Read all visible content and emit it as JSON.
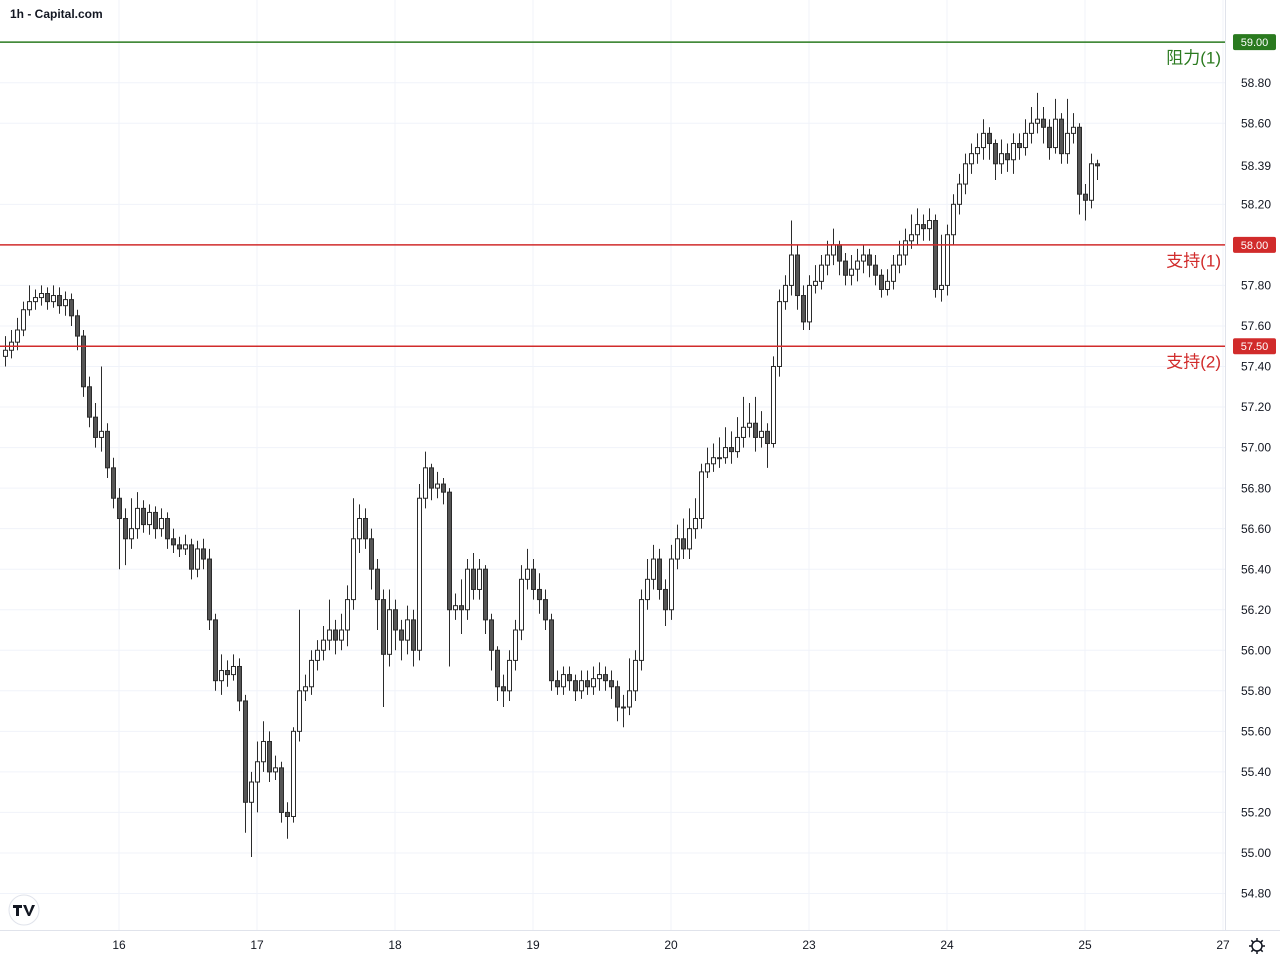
{
  "chart_data": {
    "type": "candlestick",
    "title": "1h - Capital.com",
    "categories": [
      null,
      null,
      null,
      null,
      null,
      null,
      null,
      null,
      null,
      null,
      null,
      null,
      null,
      null,
      null,
      null,
      null,
      null,
      null,
      "16",
      null,
      null,
      null,
      null,
      null,
      null,
      null,
      null,
      null,
      null,
      null,
      null,
      null,
      null,
      null,
      null,
      null,
      null,
      null,
      null,
      null,
      null,
      "17",
      null,
      null,
      null,
      null,
      null,
      null,
      null,
      null,
      null,
      null,
      null,
      null,
      null,
      null,
      null,
      null,
      null,
      null,
      null,
      null,
      null,
      null,
      "18",
      null,
      null,
      null,
      null,
      null,
      null,
      null,
      null,
      null,
      null,
      null,
      null,
      null,
      null,
      null,
      null,
      null,
      null,
      null,
      null,
      null,
      null,
      "19",
      null,
      null,
      null,
      null,
      null,
      null,
      null,
      null,
      null,
      null,
      null,
      null,
      null,
      null,
      null,
      null,
      null,
      null,
      null,
      null,
      null,
      null,
      "20",
      null,
      null,
      null,
      null,
      null,
      null,
      null,
      null,
      null,
      null,
      null,
      null,
      null,
      null,
      null,
      null,
      null,
      null,
      null,
      null,
      null,
      null,
      "23",
      null,
      null,
      null,
      null,
      null,
      null,
      null,
      null,
      null,
      null,
      null,
      null,
      null,
      null,
      null,
      null,
      null,
      null,
      null,
      null,
      null,
      null,
      "24",
      null,
      null,
      null,
      null,
      null,
      null,
      null,
      null,
      null,
      null,
      null,
      null,
      null,
      null,
      null,
      null,
      null,
      null,
      null,
      null,
      null,
      null,
      "25",
      null,
      null,
      null,
      null,
      null,
      null,
      null,
      null,
      null,
      null,
      null,
      null,
      null,
      null,
      null,
      null,
      null,
      null,
      null,
      null,
      null,
      null,
      "27"
    ],
    "open": [
      57.45,
      57.48,
      57.52,
      57.58,
      57.68,
      57.72,
      57.74,
      57.76,
      57.72,
      57.75,
      57.7,
      57.73,
      57.65,
      57.55,
      57.3,
      57.15,
      57.05,
      57.08,
      56.9,
      56.75,
      56.65,
      56.55,
      56.6,
      56.7,
      56.62,
      56.68,
      56.6,
      56.65,
      56.55,
      56.52,
      56.5,
      56.52,
      56.4,
      56.5,
      56.45,
      56.15,
      55.85,
      55.9,
      55.88,
      55.92,
      55.75,
      55.25,
      55.35,
      55.45,
      55.55,
      55.4,
      55.42,
      55.2,
      55.18,
      55.6,
      55.8,
      55.82,
      55.95,
      56.0,
      56.05,
      56.1,
      56.05,
      56.1,
      56.25,
      56.55,
      56.65,
      56.55,
      56.4,
      56.25,
      55.98,
      56.2,
      56.1,
      56.05,
      56.15,
      56.0,
      56.75,
      56.9,
      56.8,
      56.82,
      56.78,
      56.2,
      56.22,
      56.2,
      56.4,
      56.3,
      56.4,
      56.15,
      56.0,
      55.82,
      55.8,
      55.95,
      56.1,
      56.35,
      56.4,
      56.3,
      56.25,
      56.15,
      55.85,
      55.82,
      55.88,
      55.85,
      55.8,
      55.85,
      55.82,
      55.86,
      55.88,
      55.85,
      55.82,
      55.72,
      55.72,
      55.8,
      55.95,
      56.25,
      56.35,
      56.45,
      56.3,
      56.2,
      56.45,
      56.55,
      56.5,
      56.6,
      56.65,
      56.88,
      56.92,
      56.95,
      56.95,
      57.0,
      56.98,
      57.05,
      57.1,
      57.12,
      57.05,
      57.08,
      57.02,
      57.4,
      57.72,
      57.8,
      57.95,
      57.75,
      57.62,
      57.8,
      57.82,
      57.9,
      57.95,
      58.0,
      57.92,
      57.85,
      57.88,
      57.92,
      57.95,
      57.9,
      57.85,
      57.78,
      57.82,
      57.9,
      57.95,
      58.02,
      58.05,
      58.1,
      58.08,
      58.12,
      57.78,
      57.8,
      58.05,
      58.2,
      58.3,
      58.4,
      58.45,
      58.48,
      58.55,
      58.5,
      58.4,
      58.45,
      58.42,
      58.5,
      58.48,
      58.55,
      58.6,
      58.62,
      58.58,
      58.48,
      58.62,
      58.45,
      58.55,
      58.58,
      58.25,
      58.22,
      58.4,
      null,
      null,
      null,
      null,
      null,
      null,
      null,
      null,
      null,
      null,
      null,
      null,
      null,
      null,
      null,
      null,
      null,
      null,
      null,
      null,
      null
    ],
    "high": [
      57.55,
      57.58,
      57.64,
      57.72,
      57.8,
      57.78,
      57.8,
      57.79,
      57.8,
      57.79,
      57.77,
      57.76,
      57.68,
      57.58,
      57.35,
      57.22,
      57.4,
      57.12,
      56.95,
      56.8,
      56.7,
      56.75,
      56.78,
      56.74,
      56.72,
      56.71,
      56.7,
      56.68,
      56.6,
      56.56,
      56.57,
      56.55,
      56.54,
      56.55,
      56.5,
      56.18,
      55.98,
      55.95,
      55.98,
      55.96,
      55.78,
      55.4,
      55.55,
      55.65,
      55.6,
      55.48,
      55.45,
      55.25,
      55.62,
      56.2,
      55.88,
      56.0,
      56.05,
      56.12,
      56.25,
      56.15,
      56.18,
      56.32,
      56.75,
      56.72,
      56.7,
      56.6,
      56.45,
      56.3,
      56.3,
      56.25,
      56.15,
      56.22,
      56.2,
      56.82,
      56.98,
      56.92,
      56.88,
      56.85,
      56.8,
      56.28,
      56.35,
      56.45,
      56.48,
      56.45,
      56.42,
      56.18,
      56.02,
      55.88,
      56.0,
      56.15,
      56.42,
      56.5,
      56.45,
      56.38,
      56.3,
      56.18,
      55.9,
      55.92,
      55.92,
      55.88,
      55.9,
      55.9,
      55.92,
      55.94,
      55.92,
      55.9,
      55.85,
      55.78,
      55.96,
      56.0,
      56.3,
      56.45,
      56.52,
      56.5,
      56.35,
      56.52,
      56.62,
      56.65,
      56.7,
      56.75,
      56.92,
      57.0,
      57.02,
      57.05,
      57.1,
      57.08,
      57.15,
      57.25,
      57.22,
      57.25,
      57.18,
      57.12,
      57.45,
      57.78,
      57.85,
      58.12,
      58.0,
      57.8,
      57.85,
      57.9,
      57.95,
      58.02,
      58.08,
      58.02,
      57.96,
      57.95,
      57.98,
      58.0,
      57.98,
      57.95,
      57.88,
      57.88,
      57.95,
      58.02,
      58.08,
      58.15,
      58.18,
      58.15,
      58.18,
      58.15,
      58.05,
      58.1,
      58.25,
      58.35,
      58.45,
      58.5,
      58.55,
      58.62,
      58.58,
      58.52,
      58.52,
      58.5,
      58.55,
      58.55,
      58.62,
      58.68,
      58.75,
      58.68,
      58.62,
      58.72,
      58.65,
      58.72,
      58.65,
      58.6,
      58.3,
      58.45,
      58.42,
      null,
      null,
      null,
      null,
      null,
      null,
      null,
      null,
      null,
      null,
      null,
      null,
      null,
      null,
      null,
      null,
      null,
      null,
      null,
      null,
      null
    ],
    "low": [
      57.4,
      57.44,
      57.48,
      57.55,
      57.65,
      57.68,
      57.7,
      57.68,
      57.69,
      57.66,
      57.65,
      57.6,
      57.48,
      57.25,
      57.1,
      57.0,
      56.98,
      56.85,
      56.7,
      56.4,
      56.42,
      56.5,
      56.55,
      56.58,
      56.57,
      56.55,
      56.56,
      56.5,
      56.48,
      56.46,
      56.47,
      56.35,
      56.36,
      56.4,
      56.1,
      55.8,
      55.78,
      55.82,
      55.85,
      55.7,
      55.1,
      54.98,
      55.2,
      55.4,
      55.35,
      55.36,
      55.15,
      55.07,
      55.15,
      55.55,
      55.75,
      55.78,
      55.9,
      55.95,
      56.0,
      55.98,
      56.0,
      56.02,
      56.2,
      56.48,
      56.5,
      56.3,
      56.1,
      55.72,
      55.92,
      56.0,
      55.95,
      55.98,
      55.92,
      55.95,
      56.7,
      56.74,
      56.75,
      56.72,
      55.92,
      56.15,
      56.08,
      56.15,
      56.25,
      56.25,
      56.08,
      55.9,
      55.75,
      55.72,
      55.75,
      55.9,
      56.05,
      56.3,
      56.25,
      56.18,
      56.1,
      55.8,
      55.78,
      55.78,
      55.8,
      55.75,
      55.76,
      55.78,
      55.78,
      55.8,
      55.8,
      55.76,
      55.65,
      55.62,
      55.68,
      55.75,
      55.9,
      56.2,
      56.3,
      56.25,
      56.12,
      56.15,
      56.4,
      56.45,
      56.45,
      56.55,
      56.6,
      56.85,
      56.88,
      56.9,
      56.92,
      56.92,
      56.95,
      57.0,
      57.05,
      56.98,
      57.0,
      56.9,
      57.0,
      57.35,
      57.68,
      57.75,
      57.68,
      57.58,
      57.58,
      57.76,
      57.78,
      57.85,
      57.9,
      57.85,
      57.8,
      57.8,
      57.82,
      57.86,
      57.84,
      57.8,
      57.74,
      57.75,
      57.78,
      57.86,
      57.9,
      57.98,
      58.0,
      58.02,
      58.02,
      57.74,
      57.72,
      57.75,
      58.0,
      58.15,
      58.25,
      58.35,
      58.4,
      58.42,
      58.42,
      58.32,
      58.35,
      58.36,
      58.35,
      58.42,
      58.44,
      58.5,
      58.55,
      58.5,
      58.42,
      58.45,
      58.4,
      58.4,
      58.5,
      58.15,
      58.12,
      58.18,
      58.32,
      null,
      null,
      null,
      null,
      null,
      null,
      null,
      null,
      null,
      null,
      null,
      null,
      null,
      null,
      null,
      null,
      null,
      null,
      null,
      null,
      null
    ],
    "close": [
      57.48,
      57.52,
      57.58,
      57.68,
      57.72,
      57.74,
      57.76,
      57.72,
      57.75,
      57.7,
      57.73,
      57.65,
      57.55,
      57.3,
      57.15,
      57.05,
      57.08,
      56.9,
      56.75,
      56.65,
      56.55,
      56.6,
      56.7,
      56.62,
      56.68,
      56.6,
      56.65,
      56.55,
      56.52,
      56.5,
      56.52,
      56.4,
      56.5,
      56.45,
      56.15,
      55.85,
      55.9,
      55.88,
      55.92,
      55.75,
      55.25,
      55.35,
      55.45,
      55.55,
      55.4,
      55.42,
      55.2,
      55.18,
      55.6,
      55.8,
      55.82,
      55.95,
      56.0,
      56.05,
      56.1,
      56.05,
      56.1,
      56.25,
      56.55,
      56.65,
      56.55,
      56.4,
      56.25,
      55.98,
      56.2,
      56.1,
      56.05,
      56.15,
      56.0,
      56.75,
      56.9,
      56.8,
      56.82,
      56.78,
      56.2,
      56.22,
      56.2,
      56.4,
      56.3,
      56.4,
      56.15,
      56.0,
      55.82,
      55.8,
      55.95,
      56.1,
      56.35,
      56.4,
      56.3,
      56.25,
      56.15,
      55.85,
      55.82,
      55.88,
      55.85,
      55.8,
      55.85,
      55.82,
      55.86,
      55.88,
      55.85,
      55.82,
      55.72,
      55.72,
      55.8,
      55.95,
      56.25,
      56.35,
      56.45,
      56.3,
      56.2,
      56.45,
      56.55,
      56.5,
      56.6,
      56.65,
      56.88,
      56.92,
      56.95,
      56.95,
      57.0,
      56.98,
      57.05,
      57.1,
      57.12,
      57.05,
      57.08,
      57.02,
      57.4,
      57.72,
      57.8,
      57.95,
      57.75,
      57.62,
      57.8,
      57.82,
      57.9,
      57.95,
      58.0,
      57.92,
      57.85,
      57.88,
      57.92,
      57.95,
      57.9,
      57.85,
      57.78,
      57.82,
      57.9,
      57.95,
      58.02,
      58.05,
      58.1,
      58.08,
      58.12,
      57.78,
      57.8,
      58.05,
      58.2,
      58.3,
      58.4,
      58.45,
      58.48,
      58.55,
      58.5,
      58.4,
      58.45,
      58.42,
      58.5,
      58.48,
      58.55,
      58.6,
      58.62,
      58.58,
      58.48,
      58.62,
      58.45,
      58.55,
      58.58,
      58.25,
      58.22,
      58.4,
      58.39,
      null,
      null,
      null,
      null,
      null,
      null,
      null,
      null,
      null,
      null,
      null,
      null,
      null,
      null,
      null,
      null,
      null,
      null,
      null,
      null,
      null
    ],
    "up_color": "#ffffff",
    "down_color": "#555555",
    "edge_color": "#2b2b2b",
    "ylim": [
      54.62,
      59.06
    ],
    "yticks": [
      {
        "value": 54.8,
        "label": "54.80"
      },
      {
        "value": 55,
        "label": "55.00"
      },
      {
        "value": 55.2,
        "label": "55.20"
      },
      {
        "value": 55.4,
        "label": "55.40"
      },
      {
        "value": 55.6,
        "label": "55.60"
      },
      {
        "value": 55.8,
        "label": "55.80"
      },
      {
        "value": 56,
        "label": "56.00"
      },
      {
        "value": 56.2,
        "label": "56.20"
      },
      {
        "value": 56.4,
        "label": "56.40"
      },
      {
        "value": 56.6,
        "label": "56.60"
      },
      {
        "value": 56.8,
        "label": "56.80"
      },
      {
        "value": 57,
        "label": "57.00"
      },
      {
        "value": 57.2,
        "label": "57.20"
      },
      {
        "value": 57.4,
        "label": "57.40"
      },
      {
        "value": 57.6,
        "label": "57.60"
      },
      {
        "value": 57.8,
        "label": "57.80"
      },
      {
        "value": 58.2,
        "label": "58.20"
      },
      {
        "value": 58.6,
        "label": "58.60"
      },
      {
        "value": 58.8,
        "label": "58.80"
      }
    ],
    "grid": true,
    "levels": [
      {
        "name": "阻力(1)",
        "value": 59,
        "label": "59.00",
        "color": "#2a7a1f"
      },
      {
        "name": "支持(1)",
        "value": 58,
        "label": "58.00",
        "color": "#d12b2b"
      },
      {
        "name": "支持(2)",
        "value": 57.5,
        "label": "57.50",
        "color": "#d12b2b"
      }
    ],
    "last_price": {
      "value": 58.39,
      "label": "58.39"
    }
  }
}
